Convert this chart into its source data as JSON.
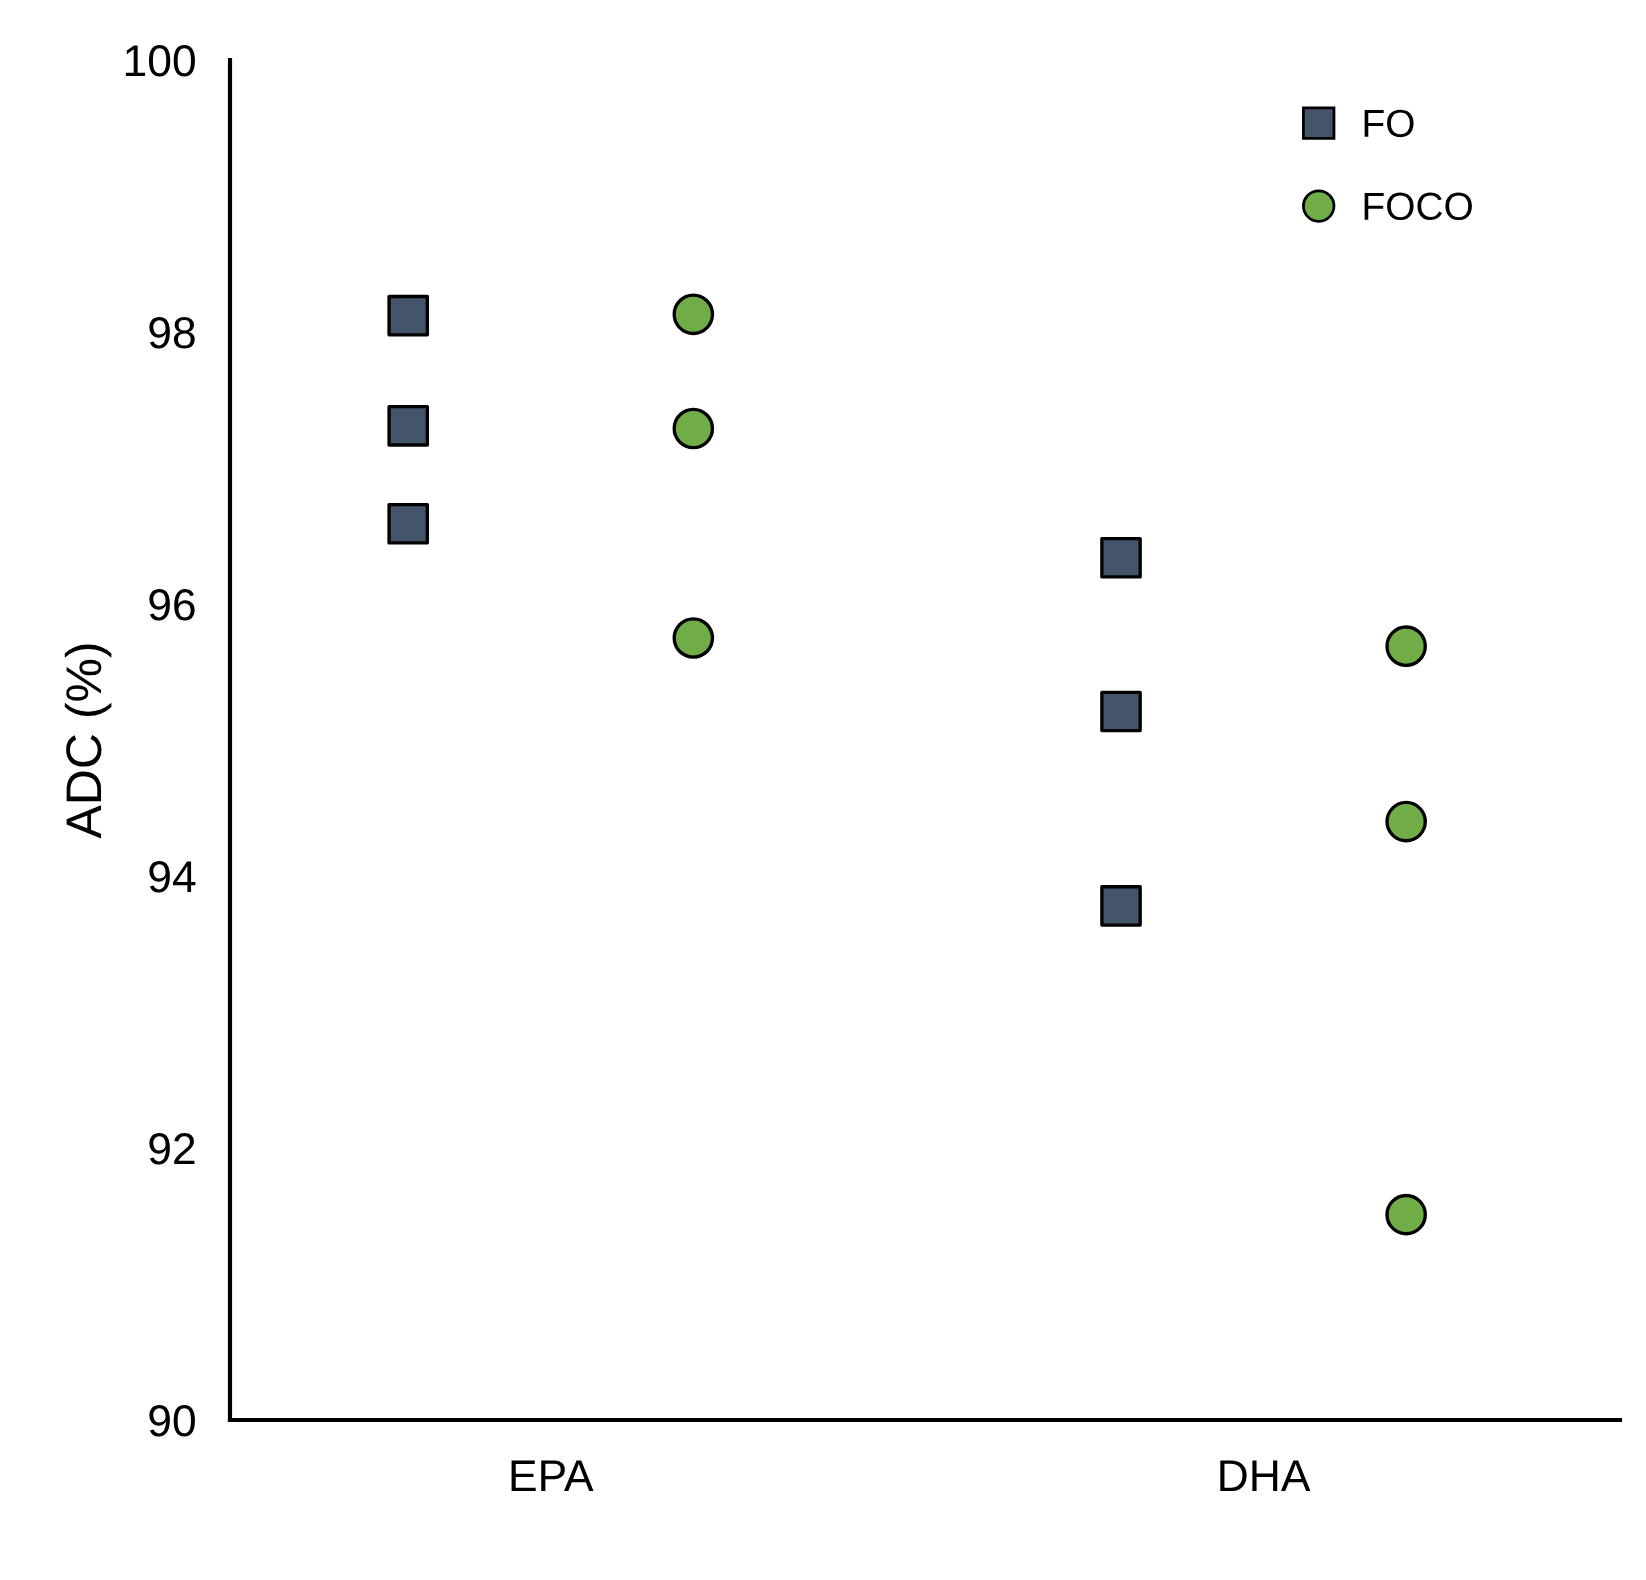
{
  "chart_data": {
    "type": "scatter",
    "ylabel": "ADC (%)",
    "categories": [
      "EPA",
      "DHA"
    ],
    "series": [
      {
        "name": "FO",
        "color": "#44546a",
        "marker": "square",
        "x": [
          "EPA",
          "EPA",
          "EPA",
          "DHA",
          "DHA",
          "DHA"
        ],
        "values": [
          98.12,
          97.31,
          96.59,
          96.34,
          95.21,
          93.78
        ]
      },
      {
        "name": "FOCO",
        "color": "#70ad47",
        "marker": "circle",
        "x": [
          "EPA",
          "EPA",
          "EPA",
          "DHA",
          "DHA",
          "DHA"
        ],
        "values": [
          98.13,
          97.29,
          95.75,
          95.69,
          94.4,
          91.51
        ]
      }
    ],
    "ylim": [
      90,
      100
    ],
    "yticks": [
      90,
      92,
      94,
      96,
      98,
      100
    ],
    "grid": false,
    "legend": "top right"
  }
}
